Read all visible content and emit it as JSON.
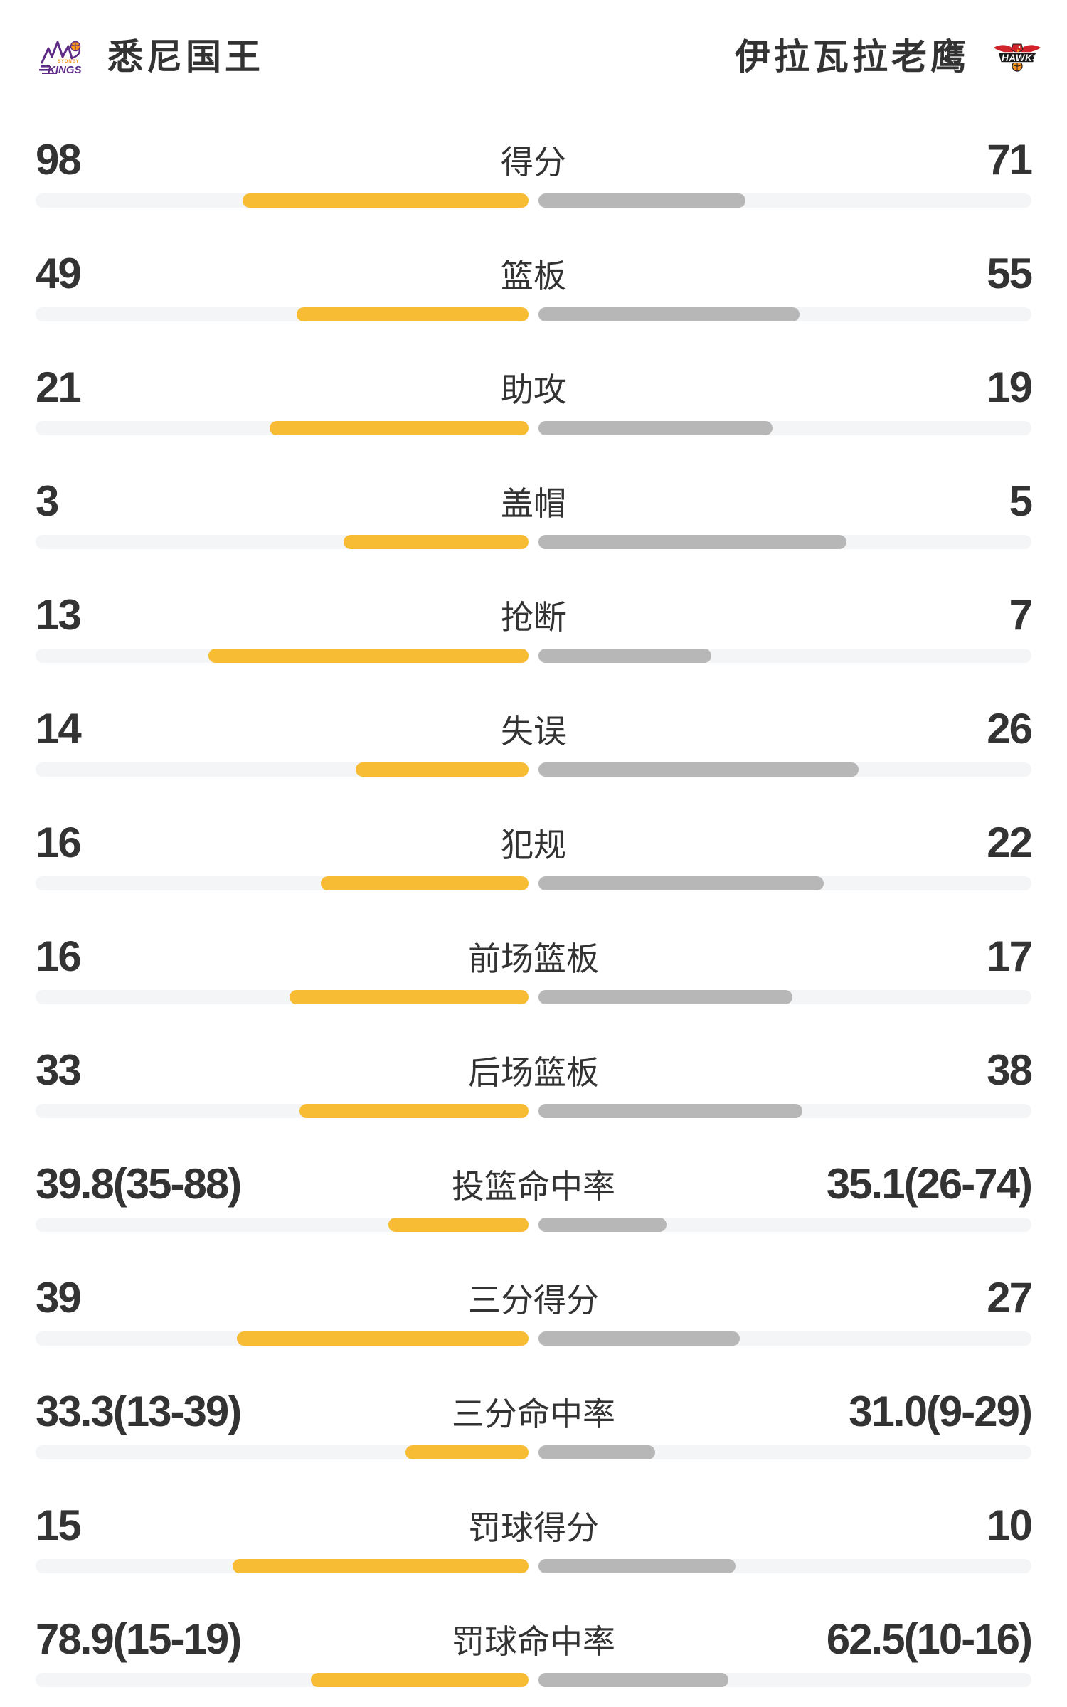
{
  "header": {
    "home": {
      "name": "悉尼国王",
      "logo_icon": "sydney-kings-logo"
    },
    "away": {
      "name": "伊拉瓦拉老鹰",
      "logo_icon": "illawarra-hawks-logo"
    }
  },
  "colors": {
    "home_fill": "#F8BC34",
    "away_fill": "#B7B7B7",
    "track": "#F4F5F7",
    "text": "#333333",
    "kings_purple": "#5F2C87",
    "hawks_red": "#D0232A",
    "ball_orange": "#F7941E"
  },
  "stats": {
    "rows": [
      {
        "label": "得分",
        "home": "98",
        "away": "71",
        "home_fill_pct": 58.0,
        "away_fill_pct": 42.0
      },
      {
        "label": "篮板",
        "home": "49",
        "away": "55",
        "home_fill_pct": 47.1,
        "away_fill_pct": 52.9
      },
      {
        "label": "助攻",
        "home": "21",
        "away": "19",
        "home_fill_pct": 52.5,
        "away_fill_pct": 47.5
      },
      {
        "label": "盖帽",
        "home": "3",
        "away": "5",
        "home_fill_pct": 37.5,
        "away_fill_pct": 62.5
      },
      {
        "label": "抢断",
        "home": "13",
        "away": "7",
        "home_fill_pct": 65.0,
        "away_fill_pct": 35.0
      },
      {
        "label": "失误",
        "home": "14",
        "away": "26",
        "home_fill_pct": 35.0,
        "away_fill_pct": 65.0
      },
      {
        "label": "犯规",
        "home": "16",
        "away": "22",
        "home_fill_pct": 42.1,
        "away_fill_pct": 57.9
      },
      {
        "label": "前场篮板",
        "home": "16",
        "away": "17",
        "home_fill_pct": 48.5,
        "away_fill_pct": 51.5
      },
      {
        "label": "后场篮板",
        "home": "33",
        "away": "38",
        "home_fill_pct": 46.5,
        "away_fill_pct": 53.5
      },
      {
        "label": "投篮命中率",
        "home": "39.8(35-88)",
        "away": "35.1(26-74)",
        "home_fill_pct": 28.5,
        "away_fill_pct": 26.0
      },
      {
        "label": "三分得分",
        "home": "39",
        "away": "27",
        "home_fill_pct": 59.1,
        "away_fill_pct": 40.9
      },
      {
        "label": "三分命中率",
        "home": "33.3(13-39)",
        "away": "31.0(9-29)",
        "home_fill_pct": 25.0,
        "away_fill_pct": 23.7
      },
      {
        "label": "罚球得分",
        "home": "15",
        "away": "10",
        "home_fill_pct": 60.0,
        "away_fill_pct": 40.0
      },
      {
        "label": "罚球命中率",
        "home": "78.9(15-19)",
        "away": "62.5(10-16)",
        "home_fill_pct": 44.1,
        "away_fill_pct": 38.5
      }
    ]
  },
  "chart_data": {
    "type": "bar",
    "categories": [
      "得分",
      "篮板",
      "助攻",
      "盖帽",
      "抢断",
      "失误",
      "犯规",
      "前场篮板",
      "后场篮板",
      "投篮命中率",
      "三分得分",
      "三分命中率",
      "罚球得分",
      "罚球命中率"
    ],
    "series": [
      {
        "name": "悉尼国王",
        "values": [
          98,
          49,
          21,
          3,
          13,
          14,
          16,
          16,
          33,
          39.8,
          39,
          33.3,
          15,
          78.9
        ]
      },
      {
        "name": "伊拉瓦拉老鹰",
        "values": [
          71,
          55,
          19,
          5,
          7,
          26,
          22,
          17,
          38,
          35.1,
          27,
          31.0,
          10,
          62.5
        ]
      }
    ],
    "legend_position": "top",
    "grid": false
  }
}
